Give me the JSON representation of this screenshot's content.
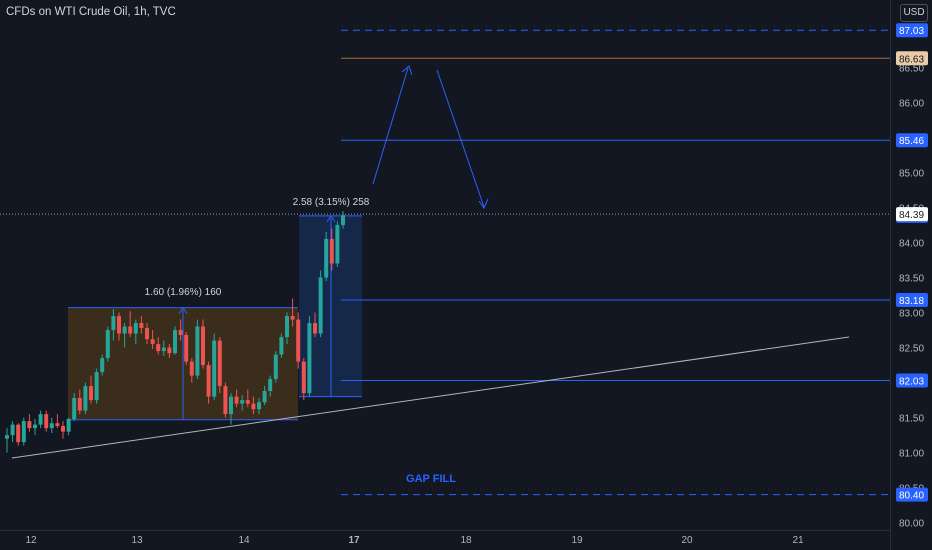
{
  "header": {
    "title": "CFDs on WTI Crude Oil, 1h, TVC",
    "currency": "USD"
  },
  "colors": {
    "background": "#131722",
    "up": "#26a69a",
    "down": "#ef5350",
    "rect_brown": "#3c2e1c",
    "rect_blue": "#16294d",
    "blue_line": "#2962ff",
    "trend": "#b2b5be",
    "axis_text": "#b2b5be",
    "price_line": "#a36a38"
  },
  "chart_data": {
    "type": "candlestick",
    "x_ticks": [
      "12",
      "13",
      "14",
      "17",
      "18",
      "19",
      "20",
      "21"
    ],
    "y_ticks": [
      "80.00",
      "80.50",
      "81.00",
      "81.50",
      "82.00",
      "82.50",
      "83.00",
      "83.50",
      "84.00",
      "84.50",
      "85.00",
      "86.00",
      "86.50",
      "87.00"
    ],
    "ylim": [
      79.95,
      87.3
    ],
    "last_price": "84.39",
    "price_labels": [
      {
        "text": "87.03",
        "value": 87.03,
        "style": "blue"
      },
      {
        "text": "86.63",
        "value": 86.63,
        "style": "brown"
      },
      {
        "text": "85.46",
        "value": 85.46,
        "style": "blue"
      },
      {
        "text": "84.38",
        "value": 84.38,
        "style": "blue"
      },
      {
        "text": "83.18",
        "value": 83.18,
        "style": "blue"
      },
      {
        "text": "82.03",
        "value": 82.03,
        "style": "blue"
      },
      {
        "text": "80.40",
        "value": 80.4,
        "style": "blue"
      }
    ],
    "horizontal_levels": [
      {
        "value": 87.03,
        "style": "dashed"
      },
      {
        "value": 86.63,
        "style": "brown"
      },
      {
        "value": 85.46,
        "style": "solid"
      },
      {
        "value": 83.18,
        "style": "solid"
      },
      {
        "value": 82.03,
        "style": "solid"
      },
      {
        "value": 80.4,
        "style": "dashed"
      }
    ],
    "measurements": [
      {
        "label": "1.60 (1.96%) 160",
        "low": 81.47,
        "high": 83.07
      },
      {
        "label": "2.58 (3.15%) 258",
        "low": 81.8,
        "high": 84.38
      }
    ],
    "annotations": [
      "GAP FILL"
    ],
    "candles": [
      [
        81.2,
        81.35,
        81.0,
        81.25
      ],
      [
        81.25,
        81.45,
        81.15,
        81.4
      ],
      [
        81.4,
        81.42,
        81.1,
        81.15
      ],
      [
        81.15,
        81.5,
        81.1,
        81.45
      ],
      [
        81.45,
        81.55,
        81.3,
        81.35
      ],
      [
        81.35,
        81.48,
        81.25,
        81.4
      ],
      [
        81.4,
        81.6,
        81.35,
        81.55
      ],
      [
        81.55,
        81.6,
        81.3,
        81.35
      ],
      [
        81.35,
        81.5,
        81.28,
        81.42
      ],
      [
        81.42,
        81.55,
        81.35,
        81.38
      ],
      [
        81.38,
        81.45,
        81.2,
        81.3
      ],
      [
        81.3,
        81.5,
        81.25,
        81.48
      ],
      [
        81.48,
        81.85,
        81.45,
        81.78
      ],
      [
        81.78,
        81.9,
        81.55,
        81.6
      ],
      [
        81.6,
        82.0,
        81.55,
        81.95
      ],
      [
        81.95,
        82.1,
        81.7,
        81.75
      ],
      [
        81.75,
        82.2,
        81.7,
        82.15
      ],
      [
        82.15,
        82.4,
        82.1,
        82.35
      ],
      [
        82.35,
        82.8,
        82.3,
        82.75
      ],
      [
        82.75,
        83.05,
        82.6,
        82.95
      ],
      [
        82.95,
        83.0,
        82.6,
        82.7
      ],
      [
        82.7,
        82.85,
        82.5,
        82.8
      ],
      [
        82.8,
        83.02,
        82.65,
        82.7
      ],
      [
        82.7,
        82.9,
        82.55,
        82.85
      ],
      [
        82.85,
        82.95,
        82.7,
        82.78
      ],
      [
        82.78,
        82.85,
        82.55,
        82.62
      ],
      [
        82.62,
        82.75,
        82.48,
        82.55
      ],
      [
        82.55,
        82.65,
        82.4,
        82.45
      ],
      [
        82.45,
        82.6,
        82.38,
        82.5
      ],
      [
        82.5,
        82.55,
        82.35,
        82.42
      ],
      [
        82.42,
        82.8,
        82.4,
        82.75
      ],
      [
        82.75,
        82.9,
        82.6,
        82.68
      ],
      [
        82.68,
        82.72,
        82.25,
        82.3
      ],
      [
        82.3,
        82.35,
        82.0,
        82.1
      ],
      [
        82.1,
        82.9,
        82.05,
        82.8
      ],
      [
        82.8,
        82.9,
        82.2,
        82.25
      ],
      [
        82.25,
        82.3,
        81.7,
        81.8
      ],
      [
        81.8,
        82.7,
        81.75,
        82.6
      ],
      [
        82.6,
        82.65,
        81.85,
        81.95
      ],
      [
        81.95,
        82.0,
        81.5,
        81.55
      ],
      [
        81.55,
        81.85,
        81.4,
        81.8
      ],
      [
        81.8,
        81.9,
        81.65,
        81.7
      ],
      [
        81.7,
        81.82,
        81.6,
        81.75
      ],
      [
        81.75,
        81.9,
        81.65,
        81.7
      ],
      [
        81.7,
        81.8,
        81.55,
        81.62
      ],
      [
        81.62,
        81.78,
        81.55,
        81.72
      ],
      [
        81.72,
        81.95,
        81.68,
        81.88
      ],
      [
        81.88,
        82.1,
        81.8,
        82.05
      ],
      [
        82.05,
        82.45,
        82.0,
        82.4
      ],
      [
        82.4,
        82.7,
        82.35,
        82.65
      ],
      [
        82.65,
        83.0,
        82.55,
        82.95
      ],
      [
        82.95,
        83.2,
        82.8,
        82.9
      ],
      [
        82.9,
        83.0,
        82.2,
        82.3
      ],
      [
        82.3,
        82.35,
        81.75,
        81.85
      ],
      [
        81.85,
        82.95,
        81.8,
        82.85
      ],
      [
        82.85,
        83.0,
        82.65,
        82.7
      ],
      [
        82.7,
        83.6,
        82.65,
        83.5
      ],
      [
        83.5,
        84.15,
        83.45,
        84.05
      ],
      [
        84.05,
        84.2,
        83.6,
        83.7
      ],
      [
        83.7,
        84.3,
        83.65,
        84.25
      ],
      [
        84.25,
        84.45,
        84.2,
        84.39
      ]
    ]
  }
}
